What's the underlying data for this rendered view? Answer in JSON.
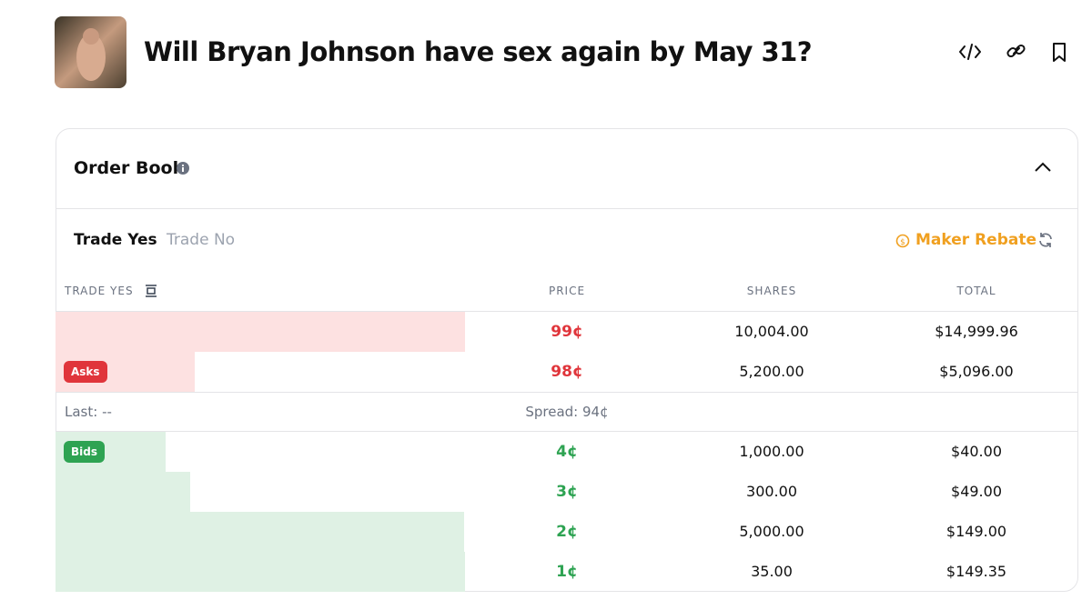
{
  "header": {
    "title": "Will Bryan Johnson have sex again by May 31?"
  },
  "order_book": {
    "title": "Order Book",
    "tabs": [
      "Trade Yes",
      "Trade No"
    ],
    "maker_rebate": "Maker Rebate",
    "columns": [
      "TRADE YES",
      "PRICE",
      "SHARES",
      "TOTAL"
    ],
    "asks_label": "Asks",
    "bids_label": "Bids",
    "asks": [
      {
        "price": "99¢",
        "shares": "10,004.00",
        "total": {
          "value": 14999.96,
          "label": "$14,999.96"
        }
      },
      {
        "price": "98¢",
        "shares": "5,200.00",
        "total": {
          "value": 5096,
          "label": "$5,096.00"
        }
      }
    ],
    "last": "Last: --",
    "spread": "Spread: 94¢",
    "bids": [
      {
        "price": "4¢",
        "shares": "1,000.00",
        "total": {
          "value": 40,
          "label": "$40.00"
        }
      },
      {
        "price": "3¢",
        "shares": "300.00",
        "total": {
          "value": 49,
          "label": "$49.00"
        }
      },
      {
        "price": "2¢",
        "shares": "5,000.00",
        "total": {
          "value": 149,
          "label": "$149.00"
        }
      },
      {
        "price": "1¢",
        "shares": "35.00",
        "total": {
          "value": 149.35,
          "label": "$149.35"
        }
      }
    ]
  }
}
